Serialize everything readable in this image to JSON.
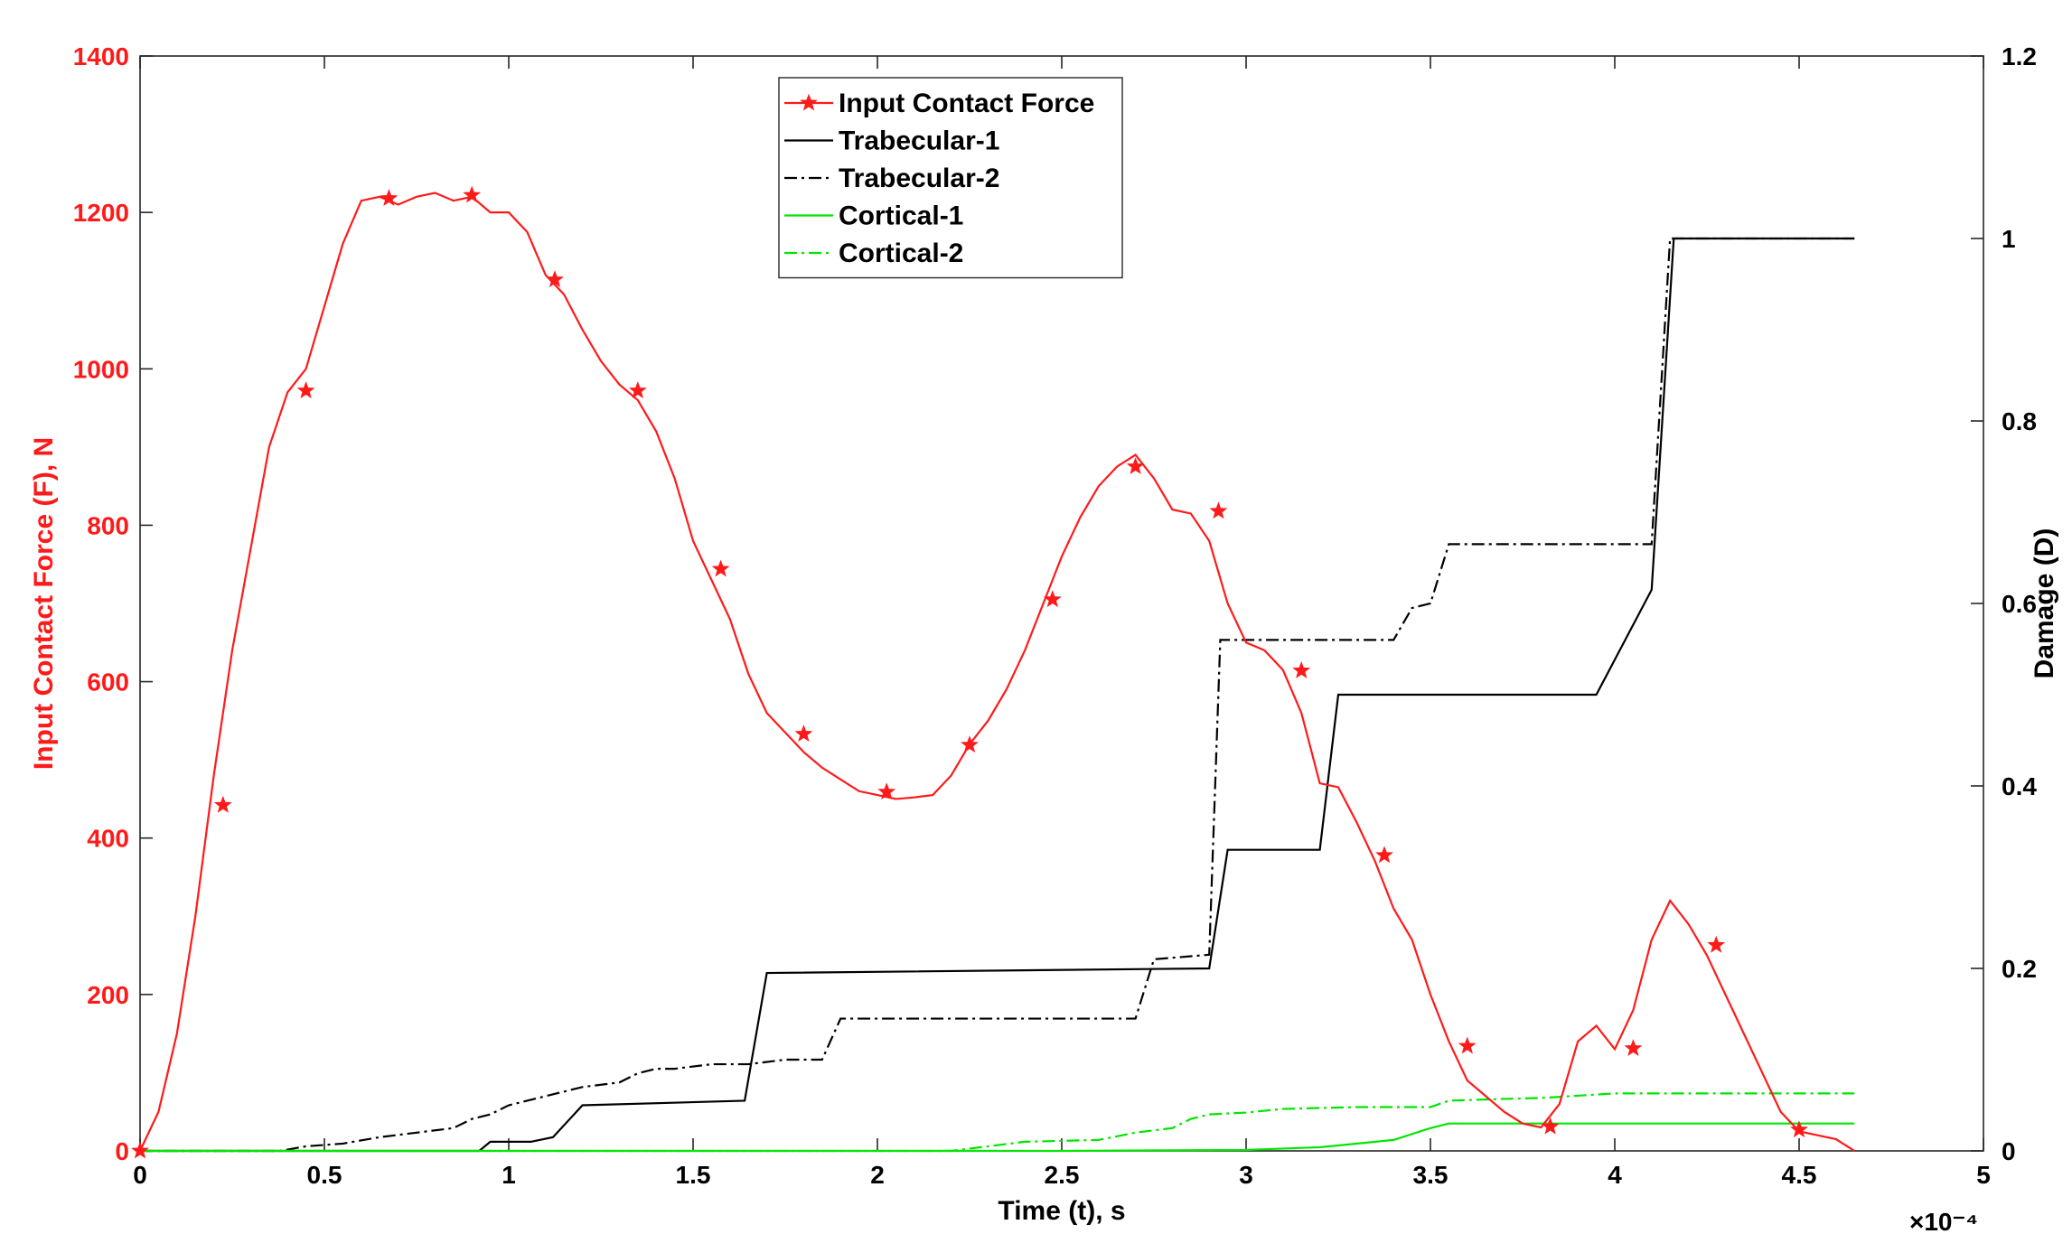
{
  "chart_data": {
    "type": "line",
    "x_axis": {
      "label": "Time (t), s",
      "lim": [
        0,
        5
      ],
      "ticks": [
        0,
        0.5,
        1,
        1.5,
        2,
        2.5,
        3,
        3.5,
        4,
        4.5,
        5
      ],
      "tick_labels": [
        "0",
        "0.5",
        "1",
        "1.5",
        "2",
        "2.5",
        "3",
        "3.5",
        "4",
        "4.5",
        "5"
      ],
      "exponent_label": "×10⁻⁴"
    },
    "y_left": {
      "label": "Input Contact Force (F), N",
      "lim": [
        0,
        1400
      ],
      "ticks": [
        0,
        200,
        400,
        600,
        800,
        1000,
        1200,
        1400
      ],
      "tick_labels": [
        "0",
        "200",
        "400",
        "600",
        "800",
        "1000",
        "1200",
        "1400"
      ],
      "color": "#ff1a1a"
    },
    "y_right": {
      "label": "Damage (D)",
      "lim": [
        0,
        1.2
      ],
      "ticks": [
        0,
        0.2,
        0.4,
        0.6,
        0.8,
        1,
        1.2
      ],
      "tick_labels": [
        "0",
        "0.2",
        "0.4",
        "0.6",
        "0.8",
        "1",
        "1.2"
      ],
      "color": "#000000"
    },
    "grid": false,
    "legend_position": "top-center",
    "series": [
      {
        "name": "Input Contact Force",
        "axis": "left",
        "color": "#ff1a1a",
        "style": "solid",
        "marker": "star",
        "x": [
          0,
          0.05,
          0.1,
          0.15,
          0.2,
          0.25,
          0.3,
          0.35,
          0.4,
          0.45,
          0.5,
          0.55,
          0.6,
          0.65,
          0.7,
          0.75,
          0.8,
          0.85,
          0.9,
          0.95,
          1.0,
          1.05,
          1.1,
          1.15,
          1.2,
          1.25,
          1.3,
          1.35,
          1.4,
          1.45,
          1.5,
          1.55,
          1.6,
          1.65,
          1.7,
          1.75,
          1.8,
          1.85,
          1.9,
          1.95,
          2.0,
          2.05,
          2.1,
          2.15,
          2.2,
          2.25,
          2.3,
          2.35,
          2.4,
          2.45,
          2.5,
          2.55,
          2.6,
          2.65,
          2.7,
          2.75,
          2.8,
          2.85,
          2.9,
          2.95,
          3.0,
          3.05,
          3.1,
          3.15,
          3.2,
          3.25,
          3.3,
          3.35,
          3.4,
          3.45,
          3.5,
          3.55,
          3.6,
          3.65,
          3.7,
          3.75,
          3.8,
          3.85,
          3.9,
          3.95,
          4.0,
          4.05,
          4.1,
          4.15,
          4.2,
          4.25,
          4.3,
          4.35,
          4.4,
          4.45,
          4.5,
          4.55,
          4.6,
          4.65
        ],
        "y": [
          0,
          50,
          150,
          300,
          480,
          640,
          770,
          900,
          970,
          1000,
          1080,
          1160,
          1215,
          1220,
          1210,
          1220,
          1225,
          1215,
          1220,
          1200,
          1200,
          1175,
          1120,
          1095,
          1050,
          1010,
          980,
          960,
          920,
          860,
          780,
          730,
          680,
          610,
          560,
          535,
          510,
          490,
          475,
          460,
          455,
          450,
          452,
          455,
          480,
          520,
          550,
          590,
          640,
          700,
          760,
          810,
          850,
          875,
          890,
          860,
          820,
          815,
          780,
          700,
          650,
          640,
          615,
          560,
          470,
          465,
          420,
          370,
          310,
          270,
          200,
          140,
          90,
          70,
          50,
          35,
          30,
          60,
          140,
          160,
          130,
          180,
          270,
          320,
          290,
          250,
          200,
          150,
          100,
          50,
          25,
          20,
          15,
          0
        ],
        "marker_x": [
          0,
          0.225,
          0.45,
          0.675,
          0.9,
          1.125,
          1.35,
          1.575,
          1.8,
          2.025,
          2.25,
          2.475,
          2.7,
          2.925,
          3.15,
          3.375,
          3.6,
          3.825,
          4.05,
          4.275,
          4.5
        ],
        "marker_y": [
          0,
          442,
          972,
          1218,
          1222,
          1114,
          972,
          744,
          533,
          459,
          519,
          705,
          875,
          818,
          614,
          378,
          134,
          31,
          131,
          263,
          27
        ]
      },
      {
        "name": "Trabecular-1",
        "axis": "right",
        "color": "#000000",
        "style": "solid",
        "x": [
          0,
          0.92,
          0.95,
          1.0,
          1.06,
          1.12,
          1.2,
          1.64,
          1.7,
          2.9,
          2.95,
          3.2,
          3.25,
          3.95,
          4.1,
          4.16,
          4.65
        ],
        "y": [
          0,
          0,
          0.01,
          0.01,
          0.01,
          0.015,
          0.05,
          0.055,
          0.195,
          0.2,
          0.33,
          0.33,
          0.5,
          0.5,
          0.615,
          1.0,
          1.0
        ]
      },
      {
        "name": "Trabecular-2",
        "axis": "right",
        "color": "#000000",
        "style": "dashdot",
        "x": [
          0,
          0.38,
          0.45,
          0.55,
          0.65,
          0.75,
          0.85,
          0.9,
          0.95,
          1.0,
          1.05,
          1.1,
          1.2,
          1.3,
          1.35,
          1.4,
          1.45,
          1.55,
          1.65,
          1.75,
          1.85,
          1.9,
          2.7,
          2.75,
          2.9,
          2.93,
          2.95,
          3.4,
          3.45,
          3.5,
          3.55,
          4.1,
          4.15,
          4.65
        ],
        "y": [
          0,
          0,
          0.005,
          0.008,
          0.015,
          0.02,
          0.025,
          0.035,
          0.04,
          0.05,
          0.055,
          0.06,
          0.07,
          0.075,
          0.085,
          0.09,
          0.09,
          0.095,
          0.095,
          0.1,
          0.1,
          0.145,
          0.145,
          0.21,
          0.215,
          0.56,
          0.56,
          0.56,
          0.595,
          0.6,
          0.665,
          0.665,
          1.0,
          1.0
        ]
      },
      {
        "name": "Cortical-1",
        "axis": "right",
        "color": "#00e600",
        "style": "solid",
        "x": [
          0,
          2.5,
          3.0,
          3.2,
          3.4,
          3.5,
          3.55,
          4.65
        ],
        "y": [
          0,
          0,
          0.001,
          0.004,
          0.012,
          0.025,
          0.03,
          0.03
        ]
      },
      {
        "name": "Cortical-2",
        "axis": "right",
        "color": "#00e600",
        "style": "dashdot",
        "x": [
          0,
          2.2,
          2.3,
          2.4,
          2.6,
          2.7,
          2.8,
          2.85,
          2.9,
          3.0,
          3.1,
          3.3,
          3.5,
          3.55,
          3.7,
          3.8,
          4.0,
          4.65
        ],
        "y": [
          0,
          0,
          0.005,
          0.01,
          0.012,
          0.02,
          0.025,
          0.035,
          0.04,
          0.042,
          0.046,
          0.048,
          0.048,
          0.055,
          0.057,
          0.058,
          0.063,
          0.063
        ]
      }
    ]
  }
}
